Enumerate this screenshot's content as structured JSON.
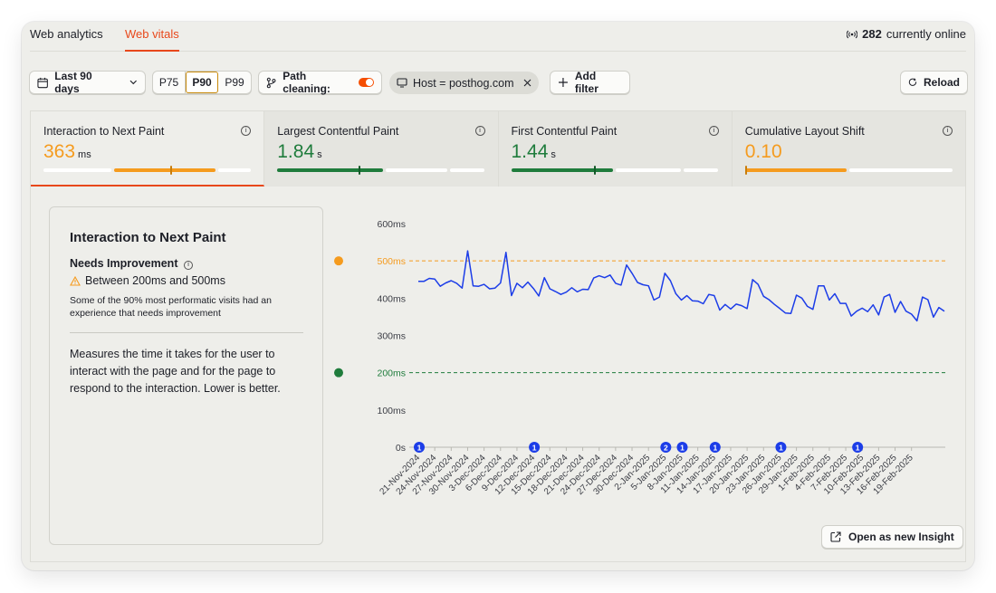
{
  "tabs": [
    {
      "label": "Web analytics"
    },
    {
      "label": "Web vitals"
    }
  ],
  "online": {
    "count": "282",
    "label": "currently online"
  },
  "toolbar": {
    "date_range": "Last 90 days",
    "percentiles": [
      "P75",
      "P90",
      "P99"
    ],
    "selected_percentile": "P90",
    "path_cleaning": "Path cleaning:",
    "path_cleaning_enabled": true,
    "host_filter": "Host = posthog.com",
    "add_filter": "Add filter",
    "reload": "Reload"
  },
  "metrics": [
    {
      "name": "Interaction to Next Paint",
      "value": "363",
      "unit": "ms",
      "color": "#f59b1e",
      "good_fraction": 0.34,
      "needs_fraction": 0.49,
      "marker_fraction": 0.61
    },
    {
      "name": "Largest Contentful Paint",
      "value": "1.84",
      "unit": "s",
      "color": "#1f7c3c",
      "good_fraction": 0.51,
      "needs_fraction": 0.31,
      "marker_fraction": 0.39
    },
    {
      "name": "First Contentful Paint",
      "value": "1.44",
      "unit": "s",
      "color": "#1f7c3c",
      "good_fraction": 0.49,
      "needs_fraction": 0.33,
      "marker_fraction": 0.4
    },
    {
      "name": "Cumulative Layout Shift",
      "value": "0.10",
      "unit": "",
      "color": "#f59b1e",
      "good_fraction": 0.0,
      "needs_fraction": 0.49,
      "marker_fraction": 0.0
    }
  ],
  "detail": {
    "title": "Interaction to Next Paint",
    "status": "Needs Improvement",
    "range": "Between 200ms and 500ms",
    "note": "Some of the 90% most performatic visits had an experience that needs improvement",
    "description": "Measures the time it takes for the user to interact with the page and for the page to respond to the interaction. Lower is better."
  },
  "open_insight": "Open as new Insight",
  "colors": {
    "accent": "#e8481b",
    "good": "#1f7c3c",
    "warning": "#f59b1e",
    "line": "#1c3de8"
  },
  "chart_data": {
    "type": "line",
    "ylabel": "",
    "ylim": [
      0,
      600
    ],
    "yticks": [
      "0s",
      "100ms",
      "200ms",
      "300ms",
      "400ms",
      "500ms",
      "600ms"
    ],
    "thresholds": [
      {
        "label": "500ms",
        "value": 500,
        "color": "#f59b1e"
      },
      {
        "label": "200ms",
        "value": 200,
        "color": "#1f7c3c"
      }
    ],
    "xlabels": [
      "21-Nov-2024",
      "24-Nov-2024",
      "27-Nov-2024",
      "30-Nov-2024",
      "3-Dec-2024",
      "6-Dec-2024",
      "9-Dec-2024",
      "12-Dec-2024",
      "15-Dec-2024",
      "18-Dec-2024",
      "21-Dec-2024",
      "24-Dec-2024",
      "27-Dec-2024",
      "30-Dec-2024",
      "2-Jan-2025",
      "5-Jan-2025",
      "8-Jan-2025",
      "11-Jan-2025",
      "14-Jan-2025",
      "17-Jan-2025",
      "20-Jan-2025",
      "23-Jan-2025",
      "26-Jan-2025",
      "29-Jan-2025",
      "1-Feb-2025",
      "4-Feb-2025",
      "7-Feb-2025",
      "10-Feb-2025",
      "13-Feb-2025",
      "16-Feb-2025",
      "19-Feb-2025"
    ],
    "series": [
      {
        "values": [
          445,
          445,
          453,
          451,
          432,
          441,
          447,
          440,
          427,
          527,
          433,
          432,
          437,
          425,
          427,
          441,
          523,
          407,
          440,
          428,
          443,
          426,
          406,
          455,
          425,
          418,
          410,
          416,
          428,
          417,
          424,
          423,
          454,
          460,
          455,
          462,
          440,
          435,
          489,
          467,
          442,
          436,
          433,
          395,
          403,
          467,
          447,
          412,
          395,
          407,
          393,
          392,
          385,
          410,
          407,
          368,
          383,
          371,
          384,
          380,
          372,
          450,
          437,
          405,
          396,
          383,
          372,
          360,
          359,
          408,
          400,
          378,
          370,
          433,
          433,
          395,
          412,
          386,
          386,
          352,
          365,
          373,
          364,
          382,
          355,
          403,
          410,
          362,
          391,
          365,
          357,
          339,
          403,
          396,
          349,
          375,
          365
        ],
        "start_date": null
      }
    ],
    "annotations": [
      {
        "x": "21-Nov-2024",
        "count": "1"
      },
      {
        "x": "12-Dec-2024",
        "count": "1"
      },
      {
        "x": "5-Jan-2025",
        "count": "2"
      },
      {
        "x": "8-Jan-2025",
        "count": "1"
      },
      {
        "x": "14-Jan-2025",
        "count": "1"
      },
      {
        "x": "26-Jan-2025",
        "count": "1"
      },
      {
        "x": "9-Feb-2025",
        "count": "1"
      }
    ]
  }
}
